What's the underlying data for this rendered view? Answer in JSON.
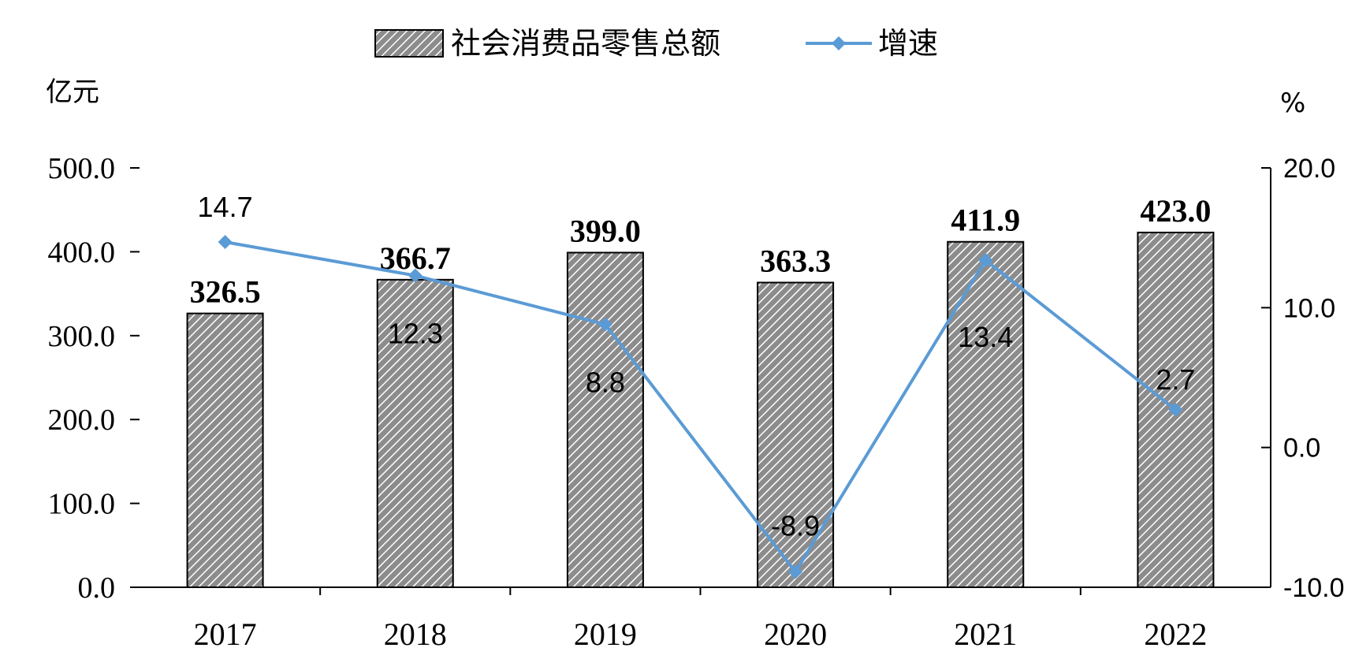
{
  "chart_data": {
    "type": "bar",
    "categories": [
      "2017",
      "2018",
      "2019",
      "2020",
      "2021",
      "2022"
    ],
    "series": [
      {
        "name": "社会消费品零售总额",
        "kind": "bar",
        "axis": "left",
        "values": [
          326.5,
          366.7,
          399.0,
          363.3,
          411.9,
          423.0
        ],
        "labels": [
          "326.5",
          "366.7",
          "399.0",
          "363.3",
          "411.9",
          "423.0"
        ]
      },
      {
        "name": "增速",
        "kind": "line",
        "axis": "right",
        "values": [
          14.7,
          12.3,
          8.8,
          -8.9,
          13.4,
          2.7
        ],
        "labels": [
          "14.7",
          "12.3",
          "8.8",
          "-8.9",
          "13.4",
          "2.7"
        ]
      }
    ],
    "y_left": {
      "unit": "亿元",
      "range": [
        0,
        500
      ],
      "ticks": [
        "0.0",
        "100.0",
        "200.0",
        "300.0",
        "400.0",
        "500.0"
      ]
    },
    "y_right": {
      "unit": "%",
      "range": [
        -10,
        20
      ],
      "ticks": [
        "-10.0",
        "0.0",
        "10.0",
        "20.0"
      ]
    },
    "legend_position": "top-center",
    "grid": false,
    "colors": {
      "bar_fill": "#8c8c8c",
      "bar_hatch": "#ffffff",
      "bar_stroke": "#000000",
      "line": "#5b9bd5",
      "axis": "#000000"
    }
  }
}
